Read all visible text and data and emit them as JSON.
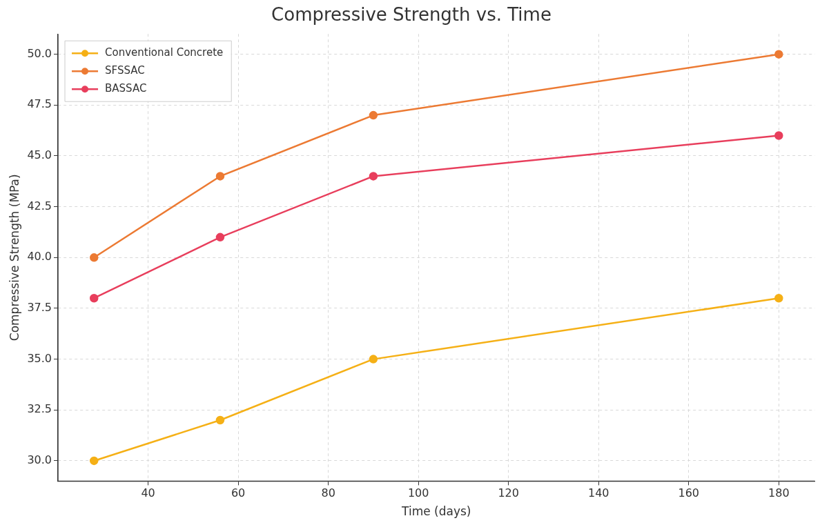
{
  "chart_data": {
    "type": "line",
    "title": "Compressive Strength vs. Time",
    "xlabel": "Time (days)",
    "ylabel": "Compressive Strength (MPa)",
    "x": [
      28,
      56,
      90,
      180
    ],
    "series": [
      {
        "name": "Conventional Concrete",
        "color": "#f5b016",
        "values": [
          30,
          32,
          35,
          38
        ]
      },
      {
        "name": "SFSSAC",
        "color": "#ec7a33",
        "values": [
          40,
          44,
          47,
          50
        ]
      },
      {
        "name": "BASSAC",
        "color": "#e83e5c",
        "values": [
          38,
          41,
          44,
          46
        ]
      }
    ],
    "xlim": [
      20,
      188
    ],
    "xticks": [
      40,
      60,
      80,
      100,
      120,
      140,
      160,
      180
    ],
    "ylim": [
      29,
      51
    ],
    "yticks": [
      {
        "value": 30,
        "label": "30.0"
      },
      {
        "value": 32.5,
        "label": "32.5"
      },
      {
        "value": 35,
        "label": "35.0"
      },
      {
        "value": 37.5,
        "label": "37.5"
      },
      {
        "value": 40,
        "label": "40.0"
      },
      {
        "value": 42.5,
        "label": "42.5"
      },
      {
        "value": 45,
        "label": "45.0"
      },
      {
        "value": 47.5,
        "label": "47.5"
      },
      {
        "value": 50,
        "label": "50.0"
      }
    ],
    "grid": true,
    "legend": "top left",
    "marker": "circle",
    "line_style": "solid"
  }
}
